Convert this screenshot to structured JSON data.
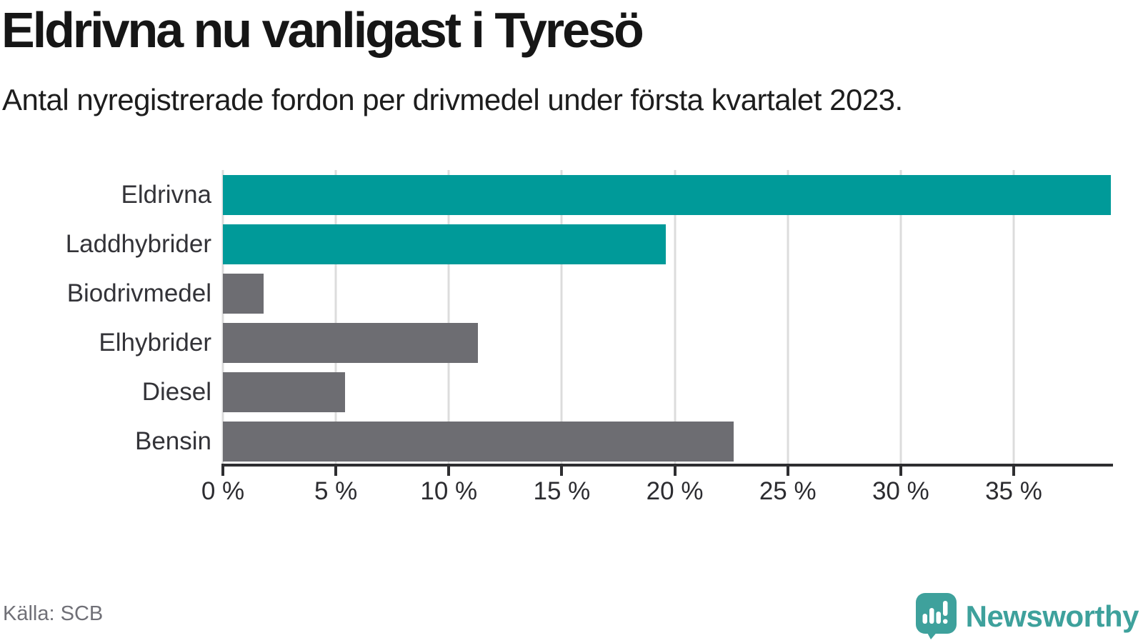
{
  "header": {
    "title": "Eldrivna nu vanligast i Tyresö",
    "subtitle": "Antal nyregistrerade fordon per drivmedel under första kvartalet 2023."
  },
  "chart_data": {
    "type": "bar",
    "orientation": "horizontal",
    "title": "Eldrivna nu vanligast i Tyresö",
    "subtitle": "Antal nyregistrerade fordon per drivmedel under första kvartalet 2023.",
    "categories": [
      "Eldrivna",
      "Laddhybrider",
      "Biodrivmedel",
      "Elhybrider",
      "Diesel",
      "Bensin"
    ],
    "values": [
      39.3,
      19.6,
      1.8,
      11.3,
      5.4,
      22.6
    ],
    "unit": "%",
    "xlim": [
      0,
      39.3
    ],
    "xticks": [
      0,
      5,
      10,
      15,
      20,
      25,
      30,
      35
    ],
    "xtick_labels": [
      "0 %",
      "5 %",
      "10 %",
      "15 %",
      "20 %",
      "25 %",
      "30 %",
      "35 %"
    ],
    "bar_colors": [
      "#009a99",
      "#009a99",
      "#6d6d72",
      "#6d6d72",
      "#6d6d72",
      "#6d6d72"
    ],
    "grid": true,
    "xlabel": "",
    "ylabel": ""
  },
  "footer": {
    "source": "Källa: SCB",
    "brand": "Newsworthy"
  },
  "colors": {
    "bar_teal": "#009a99",
    "bar_gray": "#6d6d72",
    "brand_teal": "#3ea19c",
    "gridline": "#dcdcdc",
    "axis": "#2e2e31"
  }
}
